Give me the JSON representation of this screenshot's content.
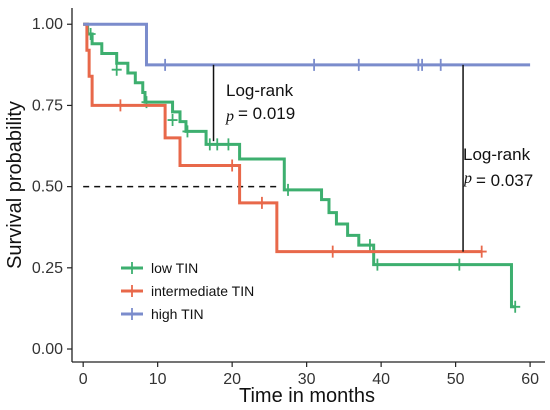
{
  "chart_data": {
    "type": "line",
    "subtype": "kaplan-meier",
    "xlabel": "Time in months",
    "ylabel": "Survival probability",
    "xlim": [
      -1.5,
      62
    ],
    "ylim": [
      -0.04,
      1.05
    ],
    "xticks": [
      0,
      10,
      20,
      30,
      40,
      50,
      60
    ],
    "yticks": [
      0.0,
      0.25,
      0.5,
      0.75,
      1.0
    ],
    "ytick_labels": [
      "0.00",
      "0.25",
      "0.50",
      "0.75",
      "1.00"
    ],
    "grid": false,
    "legend_position": "bottom-left",
    "series": [
      {
        "name": "low TIN",
        "color": "#3daf6f",
        "steps": [
          [
            0,
            1.0
          ],
          [
            0.6,
            0.97
          ],
          [
            1.2,
            0.94
          ],
          [
            2.5,
            0.91
          ],
          [
            4.5,
            0.88
          ],
          [
            6,
            0.85
          ],
          [
            7,
            0.82
          ],
          [
            8,
            0.79
          ],
          [
            8.3,
            0.76
          ],
          [
            12,
            0.73
          ],
          [
            13,
            0.7
          ],
          [
            13.8,
            0.67
          ],
          [
            16.5,
            0.63
          ],
          [
            21,
            0.585
          ],
          [
            27,
            0.49
          ],
          [
            32,
            0.46
          ],
          [
            33,
            0.42
          ],
          [
            34,
            0.385
          ],
          [
            35.5,
            0.35
          ],
          [
            37,
            0.32
          ],
          [
            39,
            0.26
          ],
          [
            57.5,
            0.13
          ],
          [
            58,
            0.13
          ]
        ],
        "censored": [
          [
            1,
            0.97
          ],
          [
            4.5,
            0.86
          ],
          [
            8.5,
            0.76
          ],
          [
            12,
            0.705
          ],
          [
            14,
            0.67
          ],
          [
            17,
            0.63
          ],
          [
            18,
            0.63
          ],
          [
            19.5,
            0.63
          ],
          [
            27.5,
            0.49
          ],
          [
            38.5,
            0.32
          ],
          [
            39.5,
            0.26
          ],
          [
            50.5,
            0.26
          ],
          [
            58,
            0.13
          ]
        ]
      },
      {
        "name": "intermediate TIN",
        "color": "#e8684a",
        "steps": [
          [
            0,
            1.0
          ],
          [
            0.5,
            0.92
          ],
          [
            0.8,
            0.84
          ],
          [
            1.2,
            0.75
          ],
          [
            11,
            0.65
          ],
          [
            13,
            0.565
          ],
          [
            21,
            0.45
          ],
          [
            26,
            0.3
          ],
          [
            53.5,
            0.3
          ]
        ],
        "censored": [
          [
            5,
            0.75
          ],
          [
            20,
            0.565
          ],
          [
            24,
            0.45
          ],
          [
            33.5,
            0.3
          ],
          [
            53.5,
            0.3
          ]
        ]
      },
      {
        "name": "high TIN",
        "color": "#7b8ccc",
        "steps": [
          [
            0,
            1.0
          ],
          [
            8.5,
            0.875
          ],
          [
            60,
            0.875
          ]
        ],
        "censored": [
          [
            11,
            0.875
          ],
          [
            31,
            0.875
          ],
          [
            37,
            0.875
          ],
          [
            45,
            0.875
          ],
          [
            45.5,
            0.875
          ],
          [
            48,
            0.875
          ]
        ]
      }
    ],
    "median_line": {
      "y": 0.5,
      "x_end": 26.5
    },
    "annotations": [
      {
        "label": "Log-rank",
        "p_symbol": "p",
        "p_value": "= 0.019",
        "line_x": 17.5,
        "line_y": [
          0.875,
          0.64
        ]
      },
      {
        "label": "Log-rank",
        "p_symbol": "p",
        "p_value": "= 0.037",
        "line_x": 51,
        "line_y": [
          0.875,
          0.3
        ]
      }
    ]
  }
}
